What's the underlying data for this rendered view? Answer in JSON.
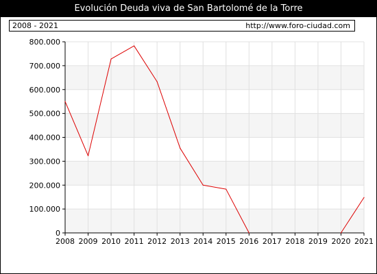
{
  "header": {
    "title": "Evolución Deuda viva de San Bartolomé de la Torre",
    "period": "2008 - 2021",
    "source": "http://www.foro-ciudad.com"
  },
  "colors": {
    "line": "#dd0000",
    "band": "#f5f5f5",
    "grid": "#e0e0e0"
  },
  "chart_data": {
    "type": "line",
    "title": "Evolución Deuda viva de San Bartolomé de la Torre",
    "x": [
      2008,
      2009,
      2010,
      2011,
      2012,
      2013,
      2014,
      2015,
      2016,
      2017,
      2018,
      2019,
      2020,
      2021
    ],
    "x_tick_labels": [
      "2008",
      "2009",
      "2010",
      "2011",
      "2012",
      "2013",
      "2014",
      "2015",
      "2016",
      "2017",
      "2018",
      "2019",
      "2020",
      "2021"
    ],
    "y_tick_values": [
      0,
      100000,
      200000,
      300000,
      400000,
      500000,
      600000,
      700000,
      800000
    ],
    "y_tick_labels": [
      "0",
      "100.000",
      "200.000",
      "300.000",
      "400.000",
      "500.000",
      "600.000",
      "700.000",
      "800.000"
    ],
    "ylim": [
      0,
      800000
    ],
    "xlim": [
      2008,
      2021
    ],
    "grid": true,
    "series": [
      {
        "values": [
          550000,
          323000,
          728000,
          783000,
          633000,
          355000,
          200000,
          183000,
          0,
          null,
          null,
          null,
          0,
          148000
        ]
      }
    ]
  }
}
